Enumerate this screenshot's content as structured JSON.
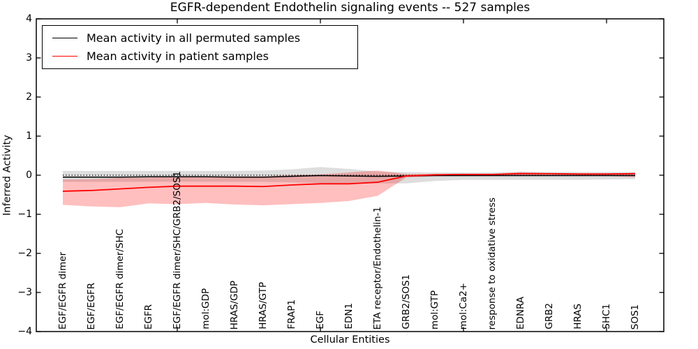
{
  "figure": {
    "title": "EGFR-dependent Endothelin signaling events -- 527 samples",
    "xlabel": "Cellular Entities",
    "ylabel": "Inferred Activity"
  },
  "legend": {
    "entries": [
      {
        "label": "Mean activity in all permuted samples",
        "color": "#000000"
      },
      {
        "label": "Mean activity in patient samples",
        "color": "#ff0000"
      }
    ]
  },
  "chart_data": {
    "type": "line",
    "title": "EGFR-dependent Endothelin signaling events -- 527 samples",
    "xlabel": "Cellular Entities",
    "ylabel": "Inferred Activity",
    "ylim": [
      -4,
      4
    ],
    "yticks": [
      4,
      3,
      2,
      1,
      0,
      -1,
      -2,
      -3,
      -4
    ],
    "ytick_labels": [
      "4",
      "3",
      "2",
      "1",
      "0",
      "−1",
      "−2",
      "−3",
      "−4"
    ],
    "grid": false,
    "legend_position": "upper left",
    "zero_reference_line": 0,
    "major_x_tick_indices": [
      4,
      9,
      14,
      19
    ],
    "categories": [
      "EGF/EGFR dimer",
      "EGF/EGFR",
      "EGF/EGFR dimer/SHC",
      "EGFR",
      "EGF/EGFR dimer/SHC/GRB2/SOS1",
      "mol:GDP",
      "HRAS/GDP",
      "HRAS/GTP",
      "FRAP1",
      "EGF",
      "EDN1",
      "ETA receptor/Endothelin-1",
      "GRB2/SOS1",
      "mol:GTP",
      "mol:Ca2+",
      "response to oxidative stress",
      "EDNRA",
      "GRB2",
      "HRAS",
      "SHC1",
      "SOS1"
    ],
    "series": [
      {
        "name": "Mean activity in all permuted samples",
        "color": "#000000",
        "line_width": 1.5,
        "values": [
          -0.05,
          -0.05,
          -0.05,
          -0.04,
          -0.04,
          -0.04,
          -0.05,
          -0.05,
          -0.03,
          -0.01,
          -0.02,
          -0.03,
          -0.02,
          -0.01,
          -0.01,
          -0.01,
          -0.01,
          -0.01,
          -0.01,
          -0.01,
          -0.01
        ]
      },
      {
        "name": "Mean activity in patient samples",
        "color": "#ff0000",
        "line_width": 1.8,
        "values": [
          -0.41,
          -0.39,
          -0.35,
          -0.31,
          -0.28,
          -0.28,
          -0.28,
          -0.29,
          -0.25,
          -0.22,
          -0.22,
          -0.18,
          -0.02,
          0.01,
          0.02,
          0.02,
          0.04,
          0.04,
          0.03,
          0.03,
          0.04
        ]
      }
    ],
    "bands": [
      {
        "name": "Permuted samples activity range",
        "color": "#999999",
        "opacity": 0.32,
        "upper": [
          0.11,
          0.11,
          0.11,
          0.11,
          0.11,
          0.11,
          0.11,
          0.12,
          0.15,
          0.21,
          0.16,
          0.09,
          0.08,
          0.07,
          0.07,
          0.07,
          0.09,
          0.08,
          0.08,
          0.08,
          0.08
        ],
        "lower": [
          -0.17,
          -0.17,
          -0.17,
          -0.17,
          -0.17,
          -0.17,
          -0.17,
          -0.17,
          -0.18,
          -0.2,
          -0.2,
          -0.21,
          -0.21,
          -0.15,
          -0.12,
          -0.12,
          -0.12,
          -0.12,
          -0.12,
          -0.11,
          -0.1
        ]
      },
      {
        "name": "Patient samples activity range",
        "color": "#ff0000",
        "opacity": 0.25,
        "upper": [
          -0.11,
          -0.1,
          -0.07,
          -0.06,
          -0.04,
          -0.03,
          -0.03,
          -0.03,
          0.0,
          0.02,
          0.07,
          0.12,
          0.03,
          0.03,
          0.03,
          0.03,
          0.08,
          0.05,
          0.04,
          0.04,
          0.06
        ],
        "lower": [
          -0.76,
          -0.8,
          -0.82,
          -0.72,
          -0.74,
          -0.71,
          -0.75,
          -0.77,
          -0.74,
          -0.71,
          -0.66,
          -0.53,
          -0.06,
          -0.03,
          -0.02,
          -0.02,
          -0.02,
          -0.02,
          -0.02,
          -0.02,
          -0.05
        ]
      }
    ]
  }
}
